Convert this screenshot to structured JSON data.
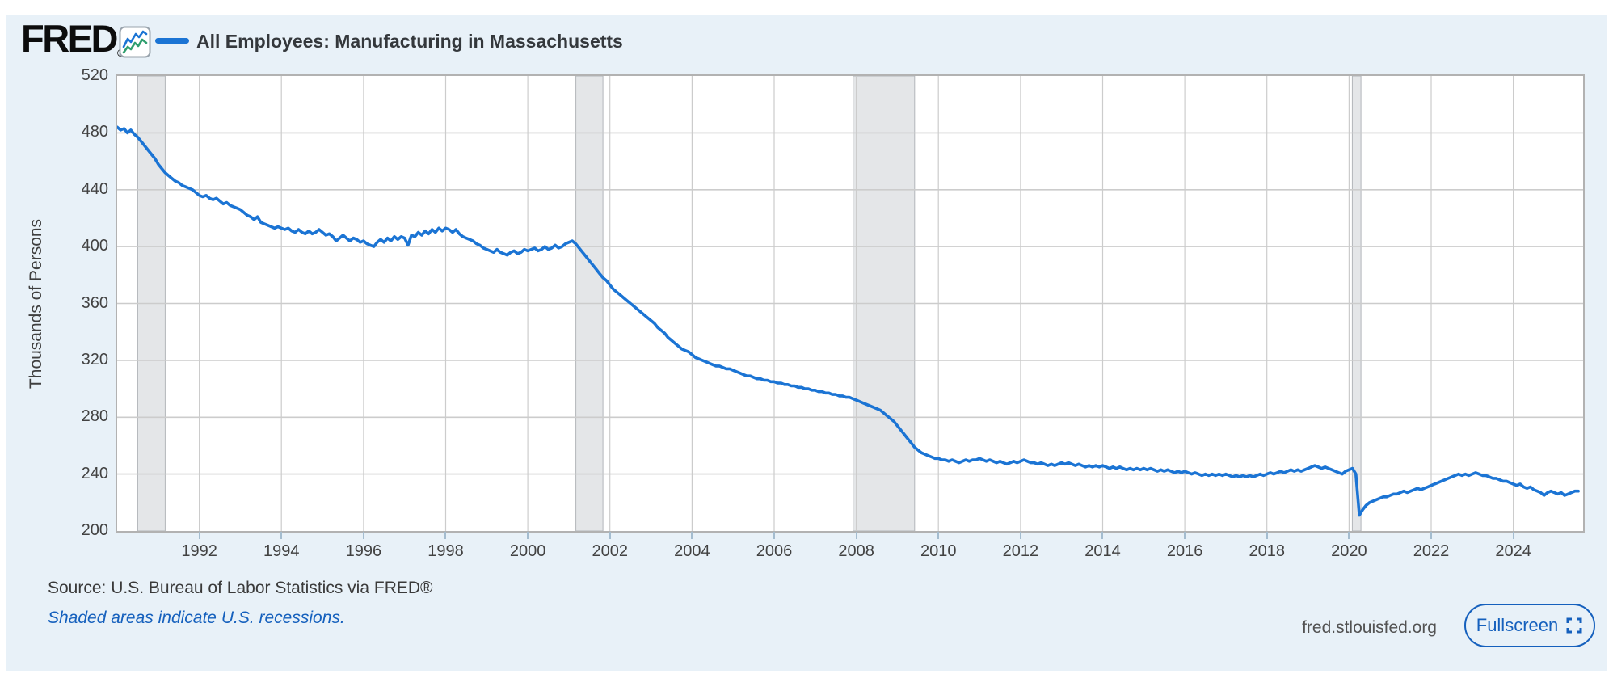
{
  "header": {
    "logo_text": "FRED",
    "registered_mark": "®",
    "series_legend": {
      "label": "All Employees: Manufacturing in Massachusetts"
    }
  },
  "footer": {
    "source_line": "Source: U.S. Bureau of Labor Statistics via FRED®",
    "recession_note": "Shaded areas indicate U.S. recessions.",
    "site_url": "fred.stlouisfed.org",
    "fullscreen_button": {
      "label": "Fullscreen"
    }
  },
  "colors": {
    "page_bg": "#ffffff",
    "panel_bg": "#e8f1f8",
    "plot_bg": "#ffffff",
    "grid": "#cccccc",
    "frame": "#b2b2b2",
    "recession_fill": "#e4e6e8",
    "recession_edge": "#b2b6ba",
    "line": "#1b74d4",
    "accent": "#1560bd",
    "tick_mark": "#a4bccf",
    "icon_green": "#2f9e6e"
  },
  "chart_data": {
    "type": "line",
    "title": "All Employees: Manufacturing in Massachusetts",
    "xlabel": "",
    "ylabel": "Thousands of Persons",
    "units": "Thousands of Persons",
    "grid": true,
    "legend_position": "top-left",
    "xlim": [
      1990,
      2025.7
    ],
    "ylim": [
      200,
      520
    ],
    "x_ticks": [
      1992,
      1994,
      1996,
      1998,
      2000,
      2002,
      2004,
      2006,
      2008,
      2010,
      2012,
      2014,
      2016,
      2018,
      2020,
      2022,
      2024
    ],
    "y_ticks": [
      200,
      240,
      280,
      320,
      360,
      400,
      440,
      480,
      520
    ],
    "recession_bands": [
      [
        1990.5,
        1991.17
      ],
      [
        2001.17,
        2001.83
      ],
      [
        2007.92,
        2009.42
      ],
      [
        2020.08,
        2020.29
      ]
    ],
    "series": [
      {
        "name": "All Employees: Manufacturing in Massachusetts",
        "frequency": "monthly",
        "start_year": 1990,
        "start_month": 1,
        "values": [
          484,
          482,
          483,
          480,
          482,
          479,
          477,
          474,
          471,
          468,
          465,
          462,
          458,
          455,
          452,
          450,
          448,
          446,
          445,
          443,
          442,
          441,
          440,
          438,
          436,
          435,
          436,
          434,
          433,
          434,
          432,
          430,
          431,
          429,
          428,
          427,
          426,
          424,
          422,
          421,
          419,
          421,
          417,
          416,
          415,
          414,
          413,
          414,
          413,
          412,
          413,
          411,
          410,
          412,
          410,
          409,
          411,
          409,
          410,
          412,
          410,
          408,
          409,
          407,
          404,
          406,
          408,
          406,
          404,
          406,
          405,
          403,
          404,
          402,
          401,
          400,
          403,
          405,
          403,
          406,
          404,
          407,
          405,
          407,
          406,
          401,
          408,
          407,
          410,
          408,
          411,
          409,
          412,
          410,
          413,
          411,
          413,
          412,
          410,
          412,
          409,
          407,
          406,
          405,
          404,
          402,
          401,
          399,
          398,
          397,
          396,
          398,
          396,
          395,
          394,
          396,
          397,
          395,
          396,
          398,
          397,
          398,
          399,
          397,
          398,
          400,
          398,
          399,
          401,
          399,
          400,
          402,
          403,
          404,
          402,
          399,
          396,
          393,
          390,
          387,
          384,
          381,
          378,
          376,
          373,
          370,
          368,
          366,
          364,
          362,
          360,
          358,
          356,
          354,
          352,
          350,
          348,
          346,
          343,
          341,
          339,
          336,
          334,
          332,
          330,
          328,
          327,
          326,
          324,
          322,
          321,
          320,
          319,
          318,
          317,
          316,
          316,
          315,
          314,
          314,
          313,
          312,
          311,
          310,
          309,
          309,
          308,
          307,
          307,
          306,
          306,
          305,
          305,
          304,
          304,
          303,
          303,
          302,
          302,
          301,
          301,
          300,
          300,
          299,
          299,
          298,
          298,
          297,
          297,
          296,
          296,
          295,
          295,
          294,
          294,
          293,
          292,
          291,
          290,
          289,
          288,
          287,
          286,
          285,
          283,
          281,
          279,
          277,
          274,
          271,
          268,
          265,
          262,
          259,
          257,
          255,
          254,
          253,
          252,
          251,
          251,
          250,
          250,
          249,
          250,
          249,
          248,
          249,
          250,
          249,
          250,
          250,
          251,
          250,
          249,
          250,
          249,
          248,
          249,
          248,
          247,
          248,
          249,
          248,
          249,
          250,
          249,
          248,
          248,
          247,
          248,
          247,
          246,
          247,
          246,
          247,
          248,
          247,
          248,
          247,
          246,
          247,
          246,
          245,
          246,
          245,
          246,
          245,
          246,
          245,
          244,
          245,
          244,
          245,
          244,
          243,
          244,
          243,
          244,
          243,
          244,
          243,
          244,
          243,
          242,
          243,
          242,
          243,
          242,
          241,
          242,
          241,
          242,
          241,
          240,
          241,
          240,
          239,
          240,
          239,
          240,
          239,
          240,
          239,
          240,
          239,
          238,
          239,
          238,
          239,
          238,
          239,
          238,
          239,
          240,
          239,
          240,
          241,
          240,
          241,
          242,
          241,
          242,
          243,
          242,
          243,
          242,
          243,
          244,
          245,
          246,
          245,
          244,
          245,
          244,
          243,
          242,
          241,
          240,
          242,
          243,
          244,
          240,
          211,
          215,
          218,
          220,
          221,
          222,
          223,
          224,
          224,
          225,
          226,
          226,
          227,
          228,
          227,
          228,
          229,
          230,
          229,
          230,
          231,
          232,
          233,
          234,
          235,
          236,
          237,
          238,
          239,
          240,
          239,
          240,
          239,
          240,
          241,
          240,
          239,
          239,
          238,
          237,
          237,
          236,
          235,
          235,
          234,
          233,
          232,
          233,
          231,
          230,
          231,
          229,
          228,
          227,
          225,
          227,
          228,
          227,
          226,
          227,
          225,
          226,
          227,
          228,
          228
        ]
      }
    ]
  }
}
